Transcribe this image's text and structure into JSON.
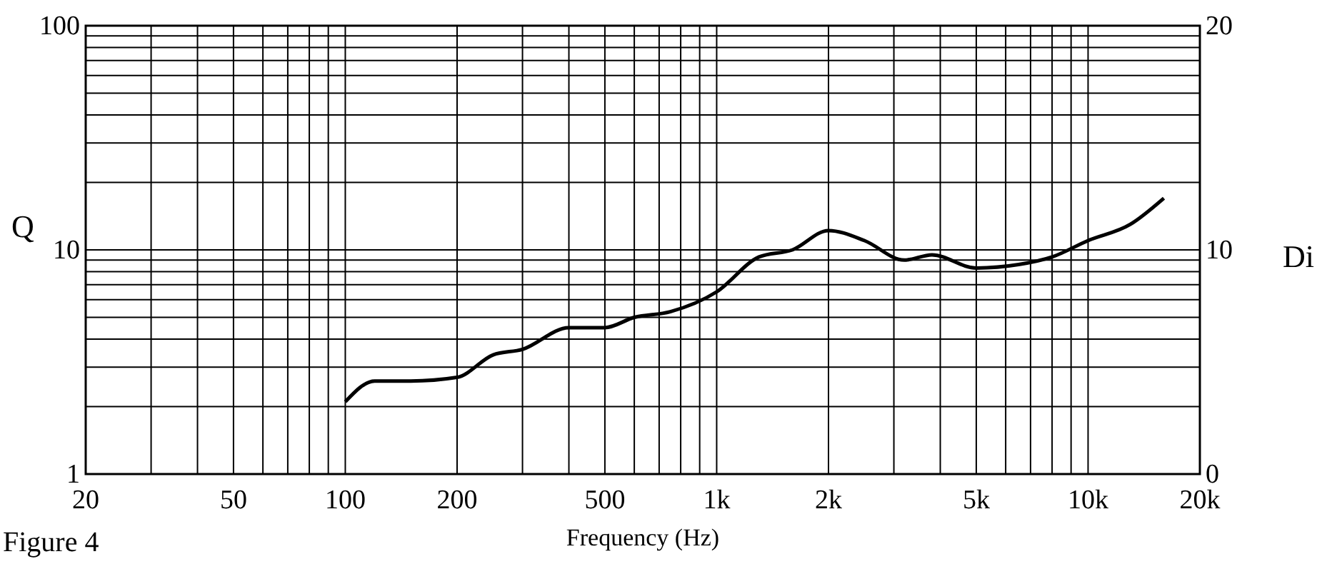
{
  "chart_data": {
    "type": "line",
    "xlabel": "Frequency (Hz)",
    "ylabel": "Q",
    "y2label": "Di",
    "log": "xy",
    "x": [
      100,
      120,
      150,
      200,
      250,
      300,
      400,
      500,
      600,
      750,
      1000,
      1300,
      1600,
      2000,
      2500,
      3200,
      3800,
      5000,
      6500,
      8000,
      10000,
      13000,
      16000
    ],
    "series": [
      {
        "color": "#000000",
        "values": [
          2.1,
          2.6,
          2.6,
          2.7,
          3.4,
          3.6,
          4.5,
          4.5,
          5.0,
          5.3,
          6.5,
          9.3,
          10,
          12.2,
          11,
          9.0,
          9.5,
          8.3,
          8.6,
          9.3,
          11,
          13,
          17
        ]
      }
    ],
    "xlim": [
      20,
      20000
    ],
    "xticks": [
      20,
      {
        "value": 30,
        "label": null
      },
      {
        "value": 40,
        "label": null
      },
      50,
      {
        "value": 60,
        "label": null
      },
      {
        "value": 70,
        "label": null
      },
      {
        "value": 80,
        "label": null
      },
      {
        "value": 90,
        "label": null
      },
      100,
      200,
      {
        "value": 300,
        "label": null
      },
      {
        "value": 400,
        "label": null
      },
      500,
      {
        "value": 600,
        "label": null
      },
      {
        "value": 700,
        "label": null
      },
      {
        "value": 800,
        "label": null
      },
      {
        "value": 900,
        "label": null
      },
      {
        "value": 1000,
        "label": "1k"
      },
      {
        "value": 2000,
        "label": "2k"
      },
      {
        "value": 3000,
        "label": null
      },
      {
        "value": 4000,
        "label": null
      },
      {
        "value": 5000,
        "label": "5k"
      },
      {
        "value": 6000,
        "label": null
      },
      {
        "value": 7000,
        "label": null
      },
      {
        "value": 8000,
        "label": null
      },
      {
        "value": 9000,
        "label": null
      },
      {
        "value": 10000,
        "label": "10k"
      },
      {
        "value": 20000,
        "label": "20k"
      }
    ],
    "ylim": [
      1,
      100
    ],
    "yticks": [
      1,
      {
        "value": 2,
        "label": null
      },
      {
        "value": 3,
        "label": null
      },
      {
        "value": 4,
        "label": null
      },
      {
        "value": 5,
        "label": null
      },
      {
        "value": 6,
        "label": null
      },
      {
        "value": 7,
        "label": null
      },
      {
        "value": 8,
        "label": null
      },
      {
        "value": 9,
        "label": null
      },
      10,
      {
        "value": 20,
        "label": null
      },
      {
        "value": 30,
        "label": null
      },
      {
        "value": 40,
        "label": null
      },
      {
        "value": 50,
        "label": null
      },
      {
        "value": 60,
        "label": null
      },
      {
        "value": 70,
        "label": null
      },
      {
        "value": 80,
        "label": null
      },
      {
        "value": 90,
        "label": null
      },
      100
    ],
    "y2lim": [
      0,
      20
    ],
    "y2ticks": [
      0,
      10,
      20
    ],
    "grid": true,
    "line_style": "solid",
    "marker": "none",
    "annotations": [
      "Figure 4"
    ]
  }
}
